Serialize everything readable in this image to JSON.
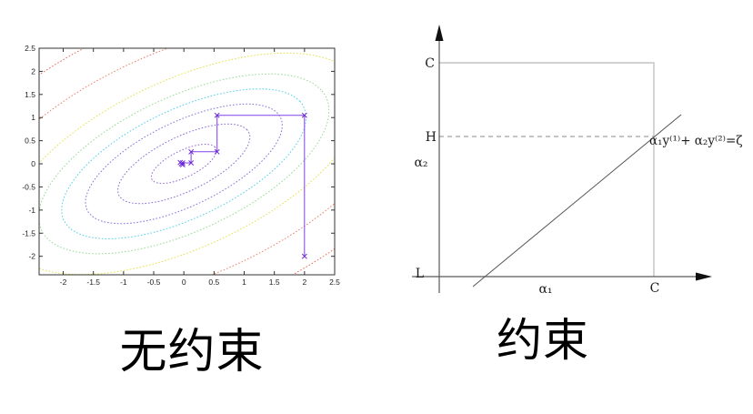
{
  "captions": {
    "left": "无约束",
    "right": "约束"
  },
  "chart_data": [
    {
      "type": "contour",
      "title": "",
      "xlabel": "",
      "ylabel": "",
      "xlim": [
        -2.4,
        2.5
      ],
      "ylim": [
        -2.4,
        2.5
      ],
      "x_ticks": [
        -2,
        -1.5,
        -1,
        -0.5,
        0,
        0.5,
        1,
        1.5,
        2,
        2.5
      ],
      "y_ticks": [
        -2,
        -1.5,
        -1,
        -0.5,
        0,
        0.5,
        1,
        1.5,
        2,
        2.5
      ],
      "grid": false,
      "contour_center": [
        0,
        0
      ],
      "contour_angle_deg": 35,
      "contour_levels": [
        {
          "a": 0.63,
          "b": 0.27,
          "color": "#9468d8"
        },
        {
          "a": 1.28,
          "b": 0.55,
          "color": "#8a6ad8"
        },
        {
          "a": 1.9,
          "b": 0.85,
          "color": "#7b76dc"
        },
        {
          "a": 2.35,
          "b": 1.1,
          "color": "#55d0ec"
        },
        {
          "a": 2.78,
          "b": 1.36,
          "color": "#96dc96"
        },
        {
          "a": 3.4,
          "b": 1.7,
          "color": "#e8e04a"
        },
        {
          "a": 4.2,
          "b": 2.3,
          "color": "#ee8270"
        },
        {
          "a": 5.0,
          "b": 3.0,
          "color": "#ec685a"
        }
      ],
      "descent_path": {
        "color": "#8040e8",
        "marker_color": "#6a28d8",
        "marker": "x",
        "points": [
          [
            2,
            -2
          ],
          [
            2,
            1.05
          ],
          [
            0.55,
            1.05
          ],
          [
            0.55,
            0.26
          ],
          [
            0.12,
            0.26
          ],
          [
            0.12,
            0.02
          ],
          [
            -0.02,
            0.02
          ],
          [
            -0.02,
            -0.02
          ],
          [
            -0.06,
            0.03
          ],
          [
            -0.04,
            0.0
          ]
        ]
      },
      "axis_color": "#333333",
      "tick_label_color": "#222222"
    },
    {
      "type": "diagram",
      "x_axis_label": "α₁",
      "y_axis_label": "α₂",
      "box_top_label": "C",
      "box_right_label": "C",
      "upper_clip_label": "H",
      "lower_clip_label": "L",
      "constraint_line_label": "α₁y⁽¹⁾+ α₂y⁽²⁾=ζ",
      "h_line_style": "dashed",
      "axis_color": "#5a5a5a",
      "box_color": "#c3c3c3",
      "line_color": "#555555",
      "dash_color": "#8a8a8a",
      "label_color": "#1a1a1a"
    }
  ]
}
